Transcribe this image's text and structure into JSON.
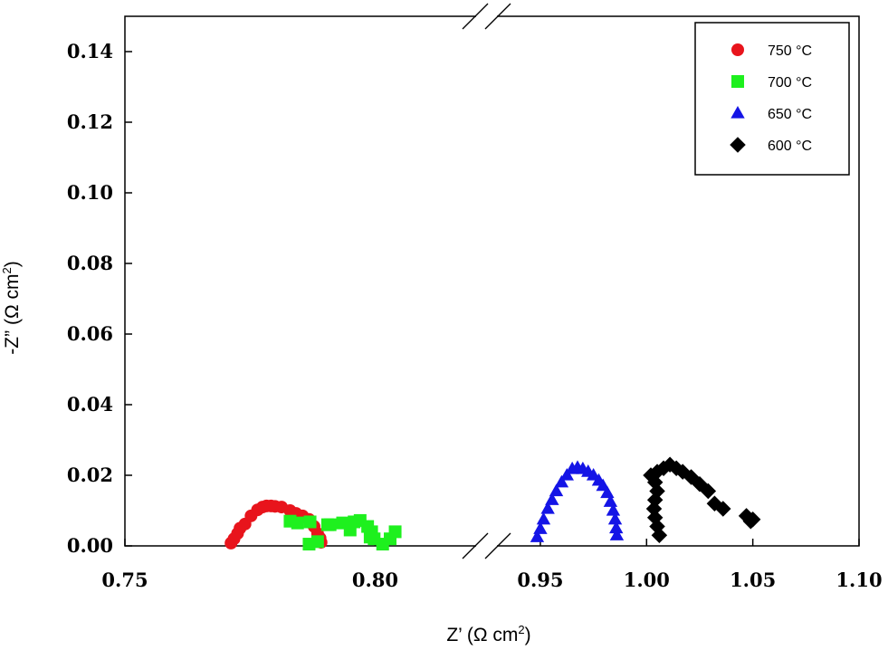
{
  "chart_data": {
    "type": "scatter",
    "title": "",
    "xlabel": "Z’ (Ω cm",
    "xlabel_sup": "2",
    "xlabel_end": ")",
    "ylabel": "-Z” (Ω cm",
    "ylabel_sup": "2",
    "ylabel_end": ")",
    "x_axis_break": true,
    "x_segments": [
      {
        "range": [
          0.75,
          0.82
        ],
        "ticks": [
          "0.75",
          "0.80"
        ],
        "tick_values": [
          0.75,
          0.8
        ]
      },
      {
        "range": [
          0.93,
          1.1
        ],
        "ticks": [
          "0.95",
          "1.00",
          "1.05",
          "1.10"
        ],
        "tick_values": [
          0.95,
          1.0,
          1.05,
          1.1
        ]
      }
    ],
    "ylim": [
      0,
      0.15
    ],
    "y_ticks": [
      "0.00",
      "0.02",
      "0.04",
      "0.06",
      "0.08",
      "0.10",
      "0.12",
      "0.14"
    ],
    "y_tick_values": [
      0,
      0.02,
      0.04,
      0.06,
      0.08,
      0.1,
      0.12,
      0.14
    ],
    "grid": false,
    "legend_position": "top-right",
    "series": [
      {
        "name": "750 °C",
        "marker": "circle",
        "color": "#e8141c",
        "x": [
          0.7712,
          0.7718,
          0.7725,
          0.773,
          0.774,
          0.7752,
          0.7765,
          0.7775,
          0.7783,
          0.7792,
          0.78,
          0.7813,
          0.783,
          0.7842,
          0.7855,
          0.7868,
          0.7878,
          0.7885,
          0.789,
          0.7892
        ],
        "y": [
          0.0008,
          0.002,
          0.0035,
          0.005,
          0.0062,
          0.0085,
          0.0102,
          0.011,
          0.0113,
          0.0113,
          0.0112,
          0.011,
          0.01,
          0.0092,
          0.0085,
          0.0075,
          0.0055,
          0.0035,
          0.0022,
          0.001
        ]
      },
      {
        "name": "700 °C",
        "marker": "square",
        "color": "#1ef01e",
        "x": [
          0.7868,
          0.7885,
          0.791,
          0.7935,
          0.7958,
          0.797,
          0.7985,
          0.7993,
          0.7998,
          0.8015,
          0.803,
          0.804,
          0.799,
          0.795,
          0.7905,
          0.787,
          0.7845,
          0.783
        ],
        "y": [
          0.0005,
          0.0012,
          0.006,
          0.0065,
          0.0068,
          0.0072,
          0.0055,
          0.004,
          0.002,
          0.0005,
          0.002,
          0.004,
          0.0025,
          0.0045,
          0.006,
          0.0068,
          0.0065,
          0.007
        ]
      },
      {
        "name": "650 °C",
        "marker": "triangle",
        "color": "#1414e6",
        "x": [
          0.9485,
          0.95,
          0.9515,
          0.9535,
          0.9555,
          0.9575,
          0.96,
          0.9625,
          0.965,
          0.9675,
          0.97,
          0.9725,
          0.975,
          0.9775,
          0.9795,
          0.9815,
          0.983,
          0.9843,
          0.9852,
          0.9857,
          0.986
        ],
        "y": [
          0.0025,
          0.0048,
          0.0075,
          0.0105,
          0.013,
          0.0155,
          0.018,
          0.02,
          0.0218,
          0.0222,
          0.0218,
          0.021,
          0.02,
          0.0185,
          0.017,
          0.015,
          0.0125,
          0.01,
          0.0075,
          0.005,
          0.003
        ]
      },
      {
        "name": "600 °C",
        "marker": "diamond",
        "color": "#000000",
        "x": [
          1.006,
          1.005,
          1.004,
          1.0035,
          1.004,
          1.005,
          1.004,
          1.002,
          1.005,
          1.008,
          1.011,
          1.014,
          1.017,
          1.021,
          1.025,
          1.029,
          1.032,
          1.036,
          1.047,
          1.049,
          1.05
        ],
        "y": [
          0.003,
          0.0055,
          0.008,
          0.0105,
          0.013,
          0.0155,
          0.018,
          0.02,
          0.021,
          0.022,
          0.023,
          0.022,
          0.021,
          0.0195,
          0.0175,
          0.0155,
          0.012,
          0.0105,
          0.0085,
          0.007,
          0.0075
        ]
      }
    ]
  }
}
